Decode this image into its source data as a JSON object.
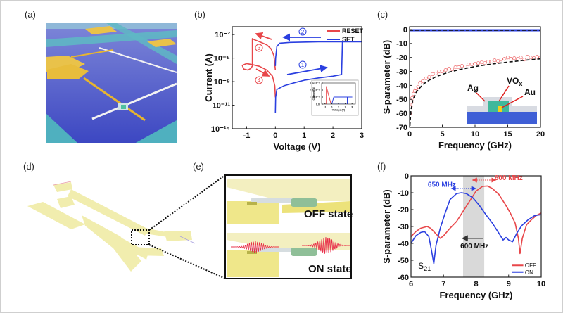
{
  "panel_labels": {
    "a": "(a)",
    "b": "(b)",
    "c": "(c)",
    "d": "(d)",
    "e": "(e)",
    "f": "(f)"
  },
  "panel_e": {
    "off_label": "OFF state",
    "on_label": "ON state"
  },
  "panel_c_inset": {
    "ag": "Ag",
    "vox_base": "VO",
    "vox_sub": "x",
    "au": "Au"
  },
  "colors": {
    "red": "#e8474a",
    "blue": "#2a3fe0",
    "black": "#111111",
    "band": "#d9d9d9"
  },
  "chart_data": [
    {
      "id": "b",
      "type": "line",
      "title": "",
      "xlabel": "Voltage (V)",
      "ylabel": "Current (A)",
      "xlim": [
        -1.5,
        3
      ],
      "ylim": [
        1e-14,
        0.1
      ],
      "ylog": true,
      "xticks": [
        -1,
        0,
        1,
        2,
        3
      ],
      "xtick_labels": [
        "-1",
        "0",
        "1",
        "2",
        "3"
      ],
      "yticks": [
        1e-14,
        1e-11,
        1e-08,
        1e-05,
        0.01
      ],
      "ytick_labels": [
        "10⁻¹⁴",
        "10⁻¹¹",
        "10⁻⁸",
        "10⁻⁵",
        "10⁻²"
      ],
      "legend": {
        "placement": "top-right",
        "entries": [
          "RESET",
          "SET"
        ]
      },
      "annotations": [
        "1",
        "2",
        "3",
        "4"
      ],
      "series": [
        {
          "name": "RESET",
          "color": "#e8474a",
          "style": "line",
          "points": [
            [
              0,
              3e-07
            ],
            [
              -0.05,
              2e-05
            ],
            [
              -0.15,
              0.00015
            ],
            [
              -0.3,
              0.0005
            ],
            [
              -0.5,
              0.001
            ],
            [
              -0.7,
              0.002
            ],
            [
              -0.8,
              0.003
            ],
            [
              -0.8,
              1e-06
            ],
            [
              -0.85,
              5e-07
            ],
            [
              -0.95,
              3e-07
            ],
            [
              -1.1,
              4e-07
            ],
            [
              -1.15,
              1.2e-06
            ],
            [
              -1.0,
              2e-06
            ],
            [
              -0.8,
              1.5e-06
            ],
            [
              -0.55,
              9e-07
            ],
            [
              -0.3,
              3e-07
            ],
            [
              -0.1,
              5e-08
            ],
            [
              -0.02,
              3e-09
            ],
            [
              0,
              1e-10
            ]
          ]
        },
        {
          "name": "SET",
          "color": "#2a3fe0",
          "style": "line",
          "points": [
            [
              0,
              1e-12
            ],
            [
              0.01,
              1e-10
            ],
            [
              0.05,
              1e-09
            ],
            [
              0.3,
              3e-09
            ],
            [
              0.7,
              8e-09
            ],
            [
              1.0,
              1.5e-08
            ],
            [
              1.5,
              3e-08
            ],
            [
              2.0,
              5e-08
            ],
            [
              2.3,
              8e-08
            ],
            [
              2.33,
              0.0012
            ],
            [
              3,
              0.0012
            ],
            [
              1.5,
              0.0012
            ],
            [
              0.5,
              0.001
            ],
            [
              0.15,
              0.0008
            ],
            [
              0.05,
              0.0003
            ],
            [
              0.01,
              1e-05
            ],
            [
              0,
              1e-06
            ]
          ]
        }
      ],
      "inset": {
        "xlabel": "Voltage (V)",
        "ylabel": "Current (A)",
        "xlim": [
          -1.5,
          3.5
        ],
        "ylim": [
          0,
          0.003
        ],
        "xticks": [
          -1,
          0,
          1,
          2,
          3
        ],
        "xtick_labels": [
          "-1",
          "0",
          "1",
          "2",
          "3"
        ],
        "yticks": [
          0,
          0.001,
          0.002,
          0.003
        ],
        "ytick_labels": [
          "0.0",
          "1.0x10⁻³",
          "2.0x10⁻³",
          "3.0x10⁻³"
        ],
        "series": [
          {
            "name": "RESET",
            "color": "#e8474a",
            "style": "line",
            "points": [
              [
                -1.1,
                0
              ],
              [
                -0.8,
                0
              ],
              [
                -0.8,
                0.0025
              ],
              [
                -0.1,
                0
              ],
              [
                0,
                0
              ]
            ]
          },
          {
            "name": "SET",
            "color": "#2a3fe0",
            "style": "line",
            "points": [
              [
                -0.1,
                0
              ],
              [
                2.3,
                0
              ],
              [
                2.3,
                0.001
              ],
              [
                3,
                0.001
              ],
              [
                0.3,
                0.001
              ],
              [
                0,
                0
              ]
            ]
          }
        ]
      }
    },
    {
      "id": "c",
      "type": "line",
      "title": "",
      "xlabel": "Frequency (GHz)",
      "ylabel": "S-parameter (dB)",
      "xlim": [
        0,
        20
      ],
      "ylim": [
        -70,
        2
      ],
      "xticks": [
        0,
        5,
        10,
        15,
        20
      ],
      "xtick_labels": [
        "0",
        "5",
        "10",
        "15",
        "20"
      ],
      "yticks": [
        -70,
        -60,
        -50,
        -40,
        -30,
        -20,
        -10,
        0
      ],
      "ytick_labels": [
        "-70",
        "-60",
        "-50",
        "-40",
        "-30",
        "-20",
        "-10",
        "0"
      ],
      "series": [
        {
          "name": "measured-top",
          "color": "#2a3fe0",
          "style": "thick",
          "points": [
            [
              0,
              -0.5
            ],
            [
              20,
              -0.5
            ]
          ]
        },
        {
          "name": "fit-top",
          "color": "#111111",
          "style": "dashed",
          "points": [
            [
              0,
              -0.5
            ],
            [
              20,
              -0.5
            ]
          ]
        },
        {
          "name": "measured-bottom",
          "color": "#e8474a",
          "style": "markers",
          "points": [
            [
              0.1,
              -60
            ],
            [
              0.2,
              -55
            ],
            [
              0.3,
              -52
            ],
            [
              0.4,
              -49
            ],
            [
              0.6,
              -46
            ],
            [
              0.8,
              -44
            ],
            [
              1.0,
              -42
            ],
            [
              1.3,
              -41
            ],
            [
              1.6,
              -38
            ],
            [
              2.0,
              -37
            ],
            [
              2.5,
              -35
            ],
            [
              3.0,
              -34
            ],
            [
              3.5,
              -32
            ],
            [
              4.0,
              -31.5
            ],
            [
              4.5,
              -30
            ],
            [
              5.0,
              -30
            ],
            [
              5.5,
              -29
            ],
            [
              6.0,
              -28
            ],
            [
              6.5,
              -28.5
            ],
            [
              7.0,
              -27
            ],
            [
              7.5,
              -27
            ],
            [
              8.0,
              -26
            ],
            [
              8.5,
              -26.5
            ],
            [
              9.0,
              -25
            ],
            [
              9.5,
              -25
            ],
            [
              10,
              -24.5
            ],
            [
              10.5,
              -24
            ],
            [
              11,
              -23.5
            ],
            [
              11.5,
              -24
            ],
            [
              12,
              -23
            ],
            [
              12.5,
              -23
            ],
            [
              13,
              -22
            ],
            [
              13.5,
              -22.5
            ],
            [
              14,
              -21.5
            ],
            [
              14.5,
              -21
            ],
            [
              15,
              -20
            ],
            [
              15.5,
              -21
            ],
            [
              16,
              -20.5
            ],
            [
              16.5,
              -21
            ],
            [
              17,
              -20
            ],
            [
              17.5,
              -21.5
            ],
            [
              18,
              -19.5
            ],
            [
              18.5,
              -20
            ],
            [
              19,
              -20.5
            ],
            [
              19.5,
              -19.5
            ],
            [
              20,
              -20
            ]
          ]
        },
        {
          "name": "fit-bottom",
          "color": "#111111",
          "style": "dashed",
          "points": [
            [
              0.05,
              -69
            ],
            [
              0.2,
              -58
            ],
            [
              0.5,
              -50.5
            ],
            [
              1,
              -45
            ],
            [
              2,
              -39.4
            ],
            [
              3,
              -36.2
            ],
            [
              4,
              -33.9
            ],
            [
              5,
              -32.1
            ],
            [
              6,
              -30.6
            ],
            [
              8,
              -28.3
            ],
            [
              10,
              -26.5
            ],
            [
              12,
              -25.1
            ],
            [
              14,
              -23.9
            ],
            [
              16,
              -22.8
            ],
            [
              18,
              -21.8
            ],
            [
              20,
              -21
            ]
          ]
        }
      ]
    },
    {
      "id": "f",
      "type": "line",
      "title": "",
      "xlabel": "Frequency (GHz)",
      "ylabel": "S-parameter (dB)",
      "xlim": [
        6,
        10
      ],
      "ylim": [
        -60,
        0
      ],
      "xticks": [
        6,
        7,
        8,
        9,
        10
      ],
      "xtick_labels": [
        "6",
        "7",
        "8",
        "9",
        "10"
      ],
      "yticks": [
        -60,
        -50,
        -40,
        -30,
        -20,
        -10,
        0
      ],
      "ytick_labels": [
        "-60",
        "-50",
        "-40",
        "-30",
        "-20",
        "-10",
        "0"
      ],
      "shaded_band": [
        7.6,
        8.25
      ],
      "legend": {
        "placement": "bottom-right",
        "entries": [
          "OFF",
          "ON"
        ]
      },
      "annotations": {
        "on_bw": "650 MHz",
        "off_bw": "600 MHz",
        "shift": "600 MHz",
        "param_base": "S",
        "param_sub": "21"
      },
      "series": [
        {
          "name": "OFF",
          "color": "#e8474a",
          "style": "line",
          "points": [
            [
              6,
              -36
            ],
            [
              6.15,
              -33
            ],
            [
              6.3,
              -31
            ],
            [
              6.5,
              -30
            ],
            [
              6.6,
              -31
            ],
            [
              6.75,
              -34
            ],
            [
              6.9,
              -37
            ],
            [
              7.0,
              -35.5
            ],
            [
              7.2,
              -31
            ],
            [
              7.4,
              -27
            ],
            [
              7.6,
              -21
            ],
            [
              7.8,
              -15
            ],
            [
              8.0,
              -9
            ],
            [
              8.2,
              -6.2
            ],
            [
              8.35,
              -6
            ],
            [
              8.5,
              -7.5
            ],
            [
              8.7,
              -11
            ],
            [
              8.9,
              -17
            ],
            [
              9.05,
              -22
            ],
            [
              9.2,
              -28
            ],
            [
              9.3,
              -37
            ],
            [
              9.35,
              -46
            ],
            [
              9.42,
              -37
            ],
            [
              9.55,
              -29
            ],
            [
              9.7,
              -26
            ],
            [
              9.85,
              -23.5
            ],
            [
              10,
              -22
            ]
          ]
        },
        {
          "name": "ON",
          "color": "#2a3fe0",
          "style": "line",
          "points": [
            [
              6,
              -40
            ],
            [
              6.15,
              -35.5
            ],
            [
              6.3,
              -33.5
            ],
            [
              6.42,
              -33
            ],
            [
              6.55,
              -36
            ],
            [
              6.63,
              -44
            ],
            [
              6.7,
              -52
            ],
            [
              6.77,
              -41
            ],
            [
              6.9,
              -31
            ],
            [
              7.05,
              -22
            ],
            [
              7.2,
              -14
            ],
            [
              7.4,
              -10.5
            ],
            [
              7.55,
              -10
            ],
            [
              7.7,
              -10.5
            ],
            [
              7.9,
              -13
            ],
            [
              8.1,
              -17.5
            ],
            [
              8.3,
              -23
            ],
            [
              8.5,
              -28
            ],
            [
              8.7,
              -34
            ],
            [
              8.83,
              -38
            ],
            [
              8.92,
              -36.5
            ],
            [
              9.0,
              -38
            ],
            [
              9.12,
              -39
            ],
            [
              9.25,
              -34
            ],
            [
              9.4,
              -29.5
            ],
            [
              9.6,
              -26
            ],
            [
              9.8,
              -23.5
            ],
            [
              10,
              -23
            ]
          ]
        }
      ]
    }
  ]
}
